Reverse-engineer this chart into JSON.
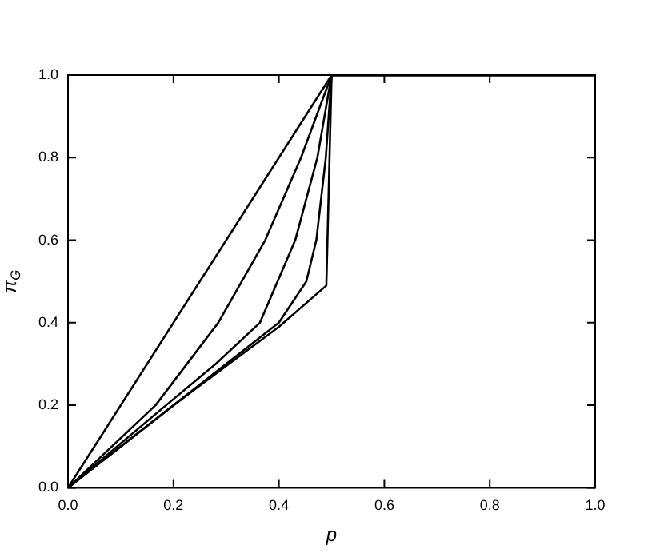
{
  "chart_data": {
    "type": "line",
    "xlabel": "p",
    "ylabel": "π$_{G}$",
    "xlim": [
      0,
      1
    ],
    "ylim": [
      0,
      1
    ],
    "xticks": [
      {
        "value": 0,
        "label": "0.0"
      },
      {
        "value": 0.2,
        "label": "0.2"
      },
      {
        "value": 0.4,
        "label": "0.4"
      },
      {
        "value": 0.6,
        "label": "0.6"
      },
      {
        "value": 0.8,
        "label": "0.8"
      },
      {
        "value": 1,
        "label": "1.0"
      }
    ],
    "yticks": [
      {
        "value": 0,
        "label": "0.0"
      },
      {
        "value": 0.2,
        "label": "0.2"
      },
      {
        "value": 0.4,
        "label": "0.4"
      },
      {
        "value": 0.6,
        "label": "0.6"
      },
      {
        "value": 0.8,
        "label": "0.8"
      },
      {
        "value": 1,
        "label": "1.0"
      }
    ],
    "grid": false,
    "legend": false,
    "marker": "none",
    "line_style": "solid",
    "series": [
      {
        "color": "#000000",
        "x": [
          0,
          0.5,
          1
        ],
        "values": [
          0,
          1,
          1
        ]
      },
      {
        "color": "#000000",
        "x": [
          0,
          0.166,
          0.285,
          0.374,
          0.442,
          0.5,
          1
        ],
        "values": [
          0,
          0.2,
          0.4,
          0.6,
          0.8,
          1,
          1
        ]
      },
      {
        "color": "#000000",
        "x": [
          0,
          0.186,
          0.28,
          0.364,
          0.431,
          0.473,
          0.5,
          1
        ],
        "values": [
          0,
          0.2,
          0.3,
          0.4,
          0.6,
          0.8,
          1,
          1
        ]
      },
      {
        "color": "#000000",
        "x": [
          0,
          0.2,
          0.4,
          0.452,
          0.471,
          0.489,
          0.5,
          1
        ],
        "values": [
          0,
          0.2,
          0.4,
          0.5,
          0.6,
          0.8,
          1,
          1
        ]
      },
      {
        "color": "#000000",
        "x": [
          0,
          0.2,
          0.4,
          0.49,
          0.5,
          1
        ],
        "values": [
          0,
          0.2,
          0.39,
          0.49,
          1,
          1
        ]
      }
    ]
  }
}
